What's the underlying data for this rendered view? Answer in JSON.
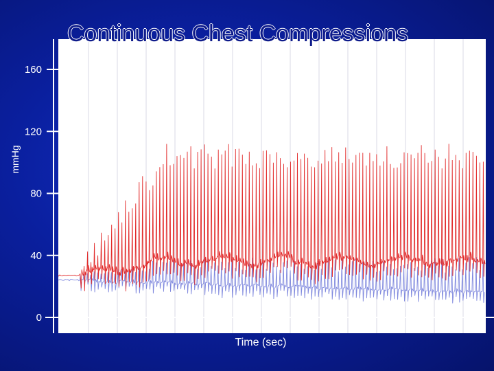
{
  "slide": {
    "title": "Continuous Chest Compressions"
  },
  "chart_data": {
    "type": "line",
    "title": "Continuous Chest Compressions",
    "xlabel": "Time (sec)",
    "ylabel": "mmHg",
    "ylim": [
      0,
      160
    ],
    "yticks": [
      0,
      40,
      80,
      120,
      160
    ],
    "grid": "vertical lines only",
    "legend": "none",
    "colors": {
      "series_red": "#e02020",
      "series_blue": "#6a74d8",
      "plot_bg": "#ffffff",
      "grid": "#d8d8e4",
      "axis": "#ffffff"
    },
    "series": [
      {
        "color": "#e02020",
        "description_level": "aortic-like pressure trace",
        "baseline_start": 27,
        "baseline_plateau": 36,
        "peak_start": 30,
        "peak_plateau": 104,
        "onset_fraction": 0.05,
        "ramp_end_fraction": 0.25,
        "compressions": 118
      },
      {
        "color": "#6a74d8",
        "description_level": "right-atrial-like pressure trace",
        "baseline_start": 24,
        "baseline_end": 16,
        "peak_plateau": 38,
        "trough_min": 8,
        "compressions": 118
      }
    ]
  }
}
